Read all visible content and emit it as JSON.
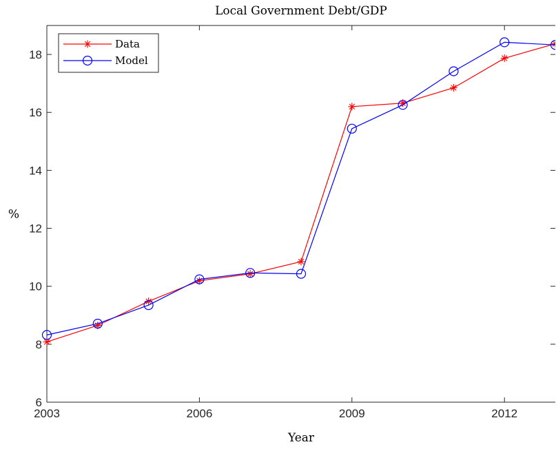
{
  "chart_data": {
    "type": "line",
    "title": "Local Government Debt/GDP",
    "xlabel": "Year",
    "ylabel": "%",
    "xlim": [
      2003,
      2013
    ],
    "ylim": [
      6,
      19
    ],
    "xticks": [
      2003,
      2006,
      2009,
      2012
    ],
    "xtick_labels": [
      "2003",
      "2006",
      "2009",
      "2012"
    ],
    "yticks": [
      6,
      8,
      10,
      12,
      14,
      16,
      18
    ],
    "ytick_labels": [
      "6",
      "8",
      "10",
      "12",
      "14",
      "16",
      "18"
    ],
    "grid": false,
    "legend_position": "top-left",
    "x": [
      2003,
      2004,
      2005,
      2006,
      2007,
      2008,
      2009,
      2010,
      2011,
      2012,
      2013
    ],
    "series": [
      {
        "name": "Data",
        "color": "#ff0000",
        "marker": "asterisk",
        "values": [
          8.08,
          8.65,
          9.48,
          10.19,
          10.43,
          10.85,
          16.2,
          16.32,
          16.85,
          17.87,
          18.37
        ]
      },
      {
        "name": "Model",
        "color": "#0000ff",
        "marker": "circle",
        "values": [
          8.32,
          8.71,
          9.35,
          10.24,
          10.46,
          10.43,
          15.44,
          16.26,
          17.42,
          18.42,
          18.33
        ]
      }
    ]
  }
}
